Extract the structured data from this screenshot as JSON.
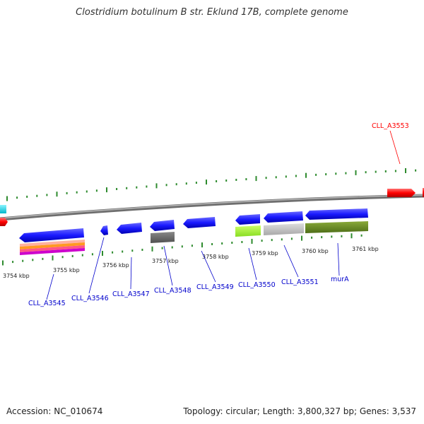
{
  "title": "Clostridium botulinum B str. Eklund 17B, complete genome",
  "accession": "Accession: NC_010674",
  "summary": "Topology: circular; Length: 3,800,327 bp; Genes: 3,537",
  "colors": {
    "gene_blue": "#1a1aff",
    "highlight_red": "#ff0000",
    "label_blue": "#0000cc",
    "tick_green": "#2e8b2e",
    "backbone": "#8a8a8a",
    "cyan": "#00d8e8"
  },
  "kbp_labels": [
    "3754 kbp",
    "3755 kbp",
    "3756 kbp",
    "3757 kbp",
    "3758 kbp",
    "3759 kbp",
    "3760 kbp",
    "3761 kbp"
  ],
  "gene_labels": [
    "CLL_A3545",
    "CLL_A3546",
    "CLL_A3547",
    "CLL_A3548",
    "CLL_A3549",
    "CLL_A3550",
    "CLL_A3551",
    "murA"
  ],
  "highlight_label": "CLL_A3553"
}
